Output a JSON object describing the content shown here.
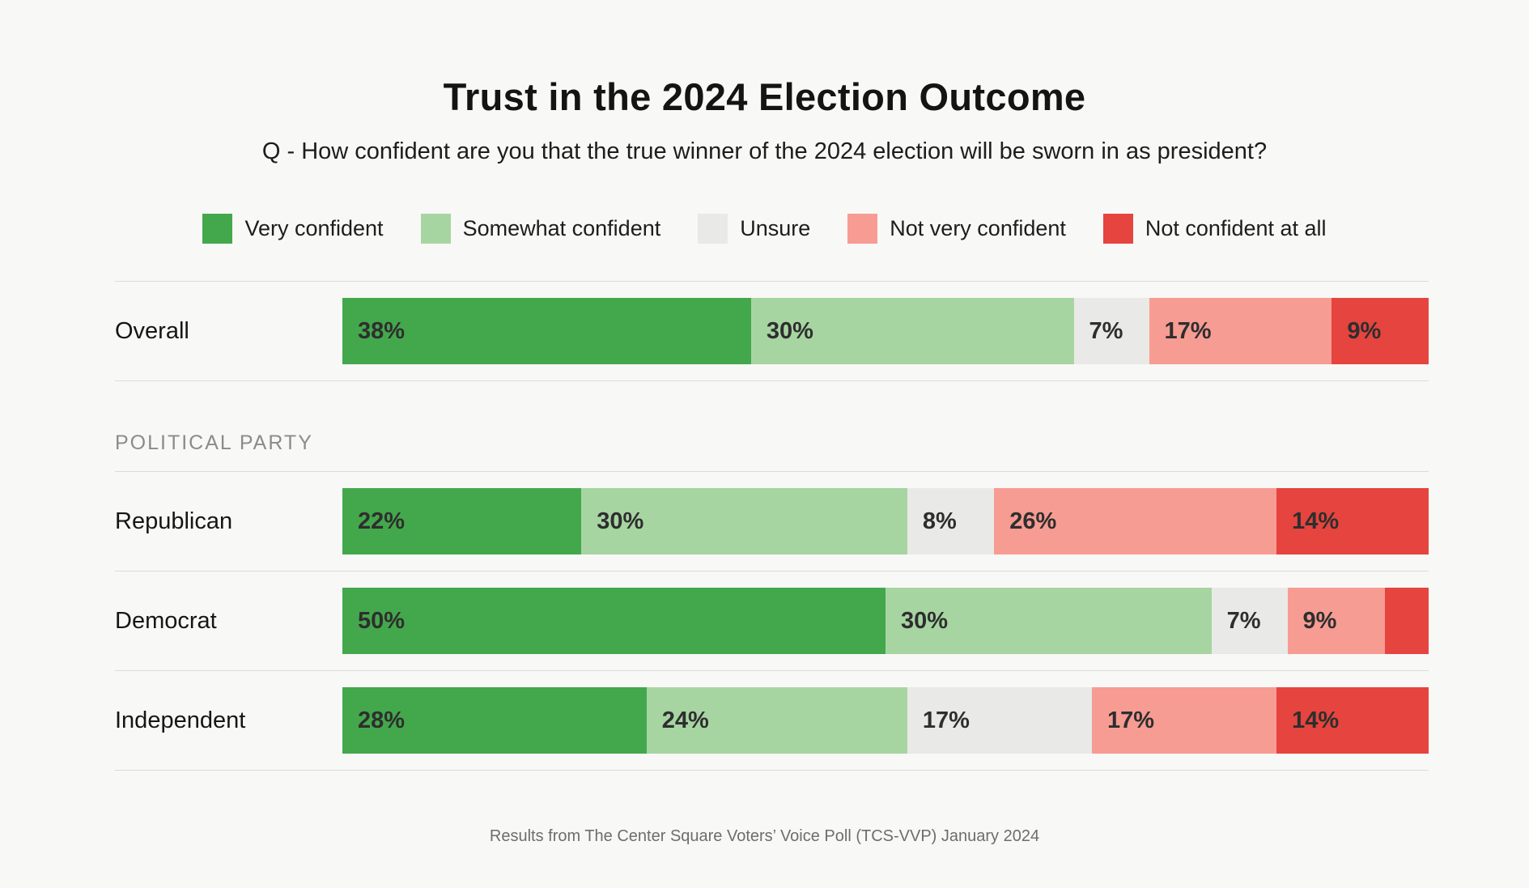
{
  "title": "Trust in the 2024 Election Outcome",
  "subtitle": "Q - How confident are you that the true winner of the 2024 election will be sworn in as president?",
  "section_label": "POLITICAL PARTY",
  "footer": "Results from The Center Square Voters’ Voice Poll (TCS-VVP) January 2024",
  "colors": {
    "background": "#f8f8f6",
    "separator": "#dbdbd9",
    "value_label_text": "#2e2e2e",
    "section_label_text": "#8b8b8b"
  },
  "chart_data": {
    "type": "bar",
    "variant": "horizontal-stacked",
    "unit": "%",
    "xlim": [
      0,
      100
    ],
    "grid": false,
    "legend_position": "top",
    "title": "Trust in the 2024 Election Outcome",
    "subtitle": "Q - How confident are you that the true winner of the 2024 election will be sworn in as president?",
    "series": [
      {
        "name": "Very confident",
        "color": "#43a84c"
      },
      {
        "name": "Somewhat confident",
        "color": "#a7d5a2"
      },
      {
        "name": "Unsure",
        "color": "#e9e9e7"
      },
      {
        "name": "Not very confident",
        "color": "#f79c93"
      },
      {
        "name": "Not confident at all",
        "color": "#e6443e"
      }
    ],
    "rows": [
      {
        "category": "Overall",
        "group": "overall",
        "values": [
          38,
          30,
          7,
          17,
          9
        ],
        "labels": [
          "38%",
          "30%",
          "7%",
          "17%",
          "9%"
        ]
      },
      {
        "category": "Republican",
        "group": "political_party",
        "values": [
          22,
          30,
          8,
          26,
          14
        ],
        "labels": [
          "22%",
          "30%",
          "8%",
          "26%",
          "14%"
        ]
      },
      {
        "category": "Democrat",
        "group": "political_party",
        "values": [
          50,
          30,
          7,
          9,
          4
        ],
        "labels": [
          "50%",
          "30%",
          "7%",
          "9%",
          ""
        ]
      },
      {
        "category": "Independent",
        "group": "political_party",
        "values": [
          28,
          24,
          17,
          17,
          14
        ],
        "labels": [
          "28%",
          "24%",
          "17%",
          "17%",
          "14%"
        ]
      }
    ]
  }
}
